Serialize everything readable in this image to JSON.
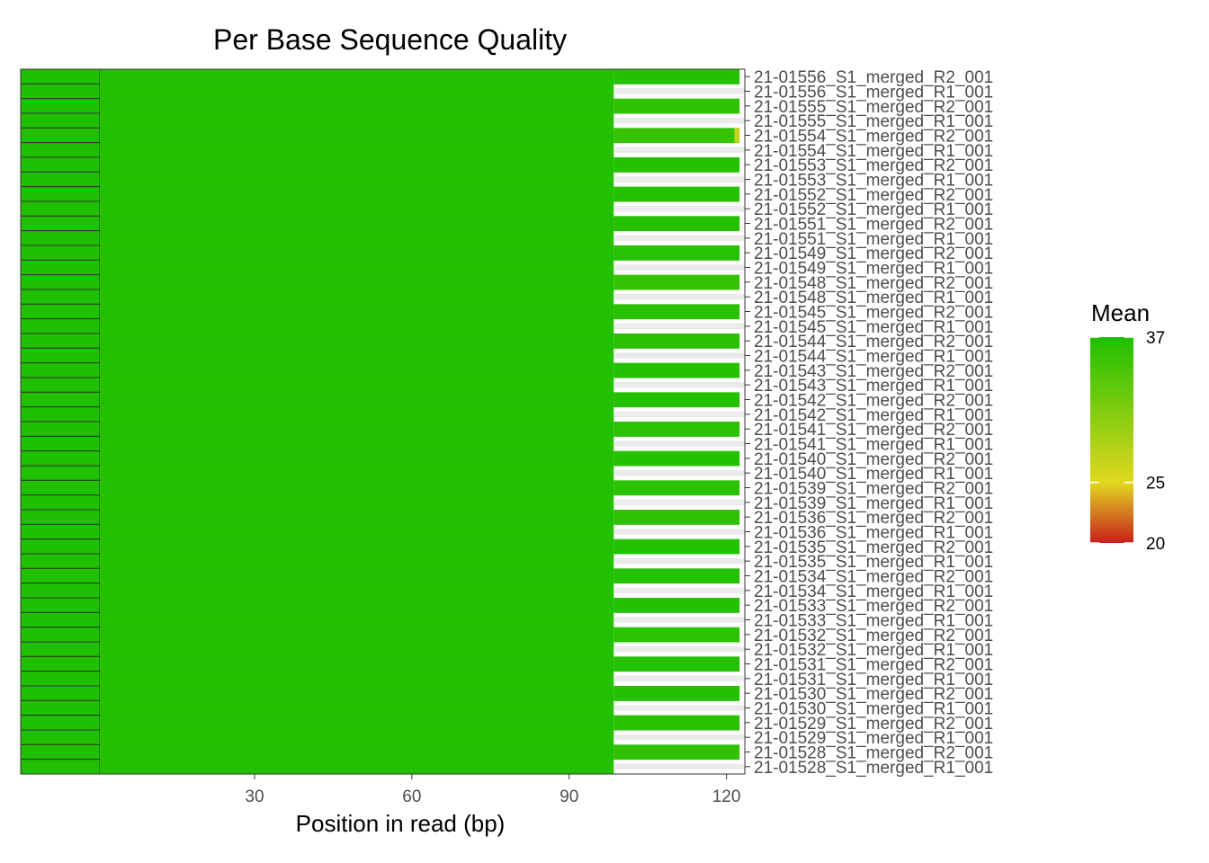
{
  "chart_data": {
    "type": "heatmap",
    "title": "Per Base Sequence Quality",
    "xlabel": "Position in read (bp)",
    "ylabel": "",
    "xlim": [
      0.5,
      123.5
    ],
    "x_ticks": [
      30,
      60,
      90,
      120
    ],
    "grid": false,
    "legend_position": "right",
    "legend": {
      "title": "Mean",
      "ticks": [
        37,
        25,
        20
      ],
      "range": [
        20,
        37
      ],
      "colors": {
        "low": "#c8201e",
        "mid": "#e1d81f",
        "high": "#1ec000"
      }
    },
    "sidebar_color": "#1ec000",
    "short_read_length": 98,
    "long_read_length": 122,
    "rows": [
      {
        "name": "21-01556_S1_merged_R2_001",
        "length": 122,
        "tail": 36.6,
        "extra_value": null
      },
      {
        "name": "21-01556_S1_merged_R1_001",
        "length": 98,
        "tail": null,
        "extra_value": null
      },
      {
        "name": "21-01555_S1_merged_R2_001",
        "length": 122,
        "tail": 35.9,
        "extra_value": null
      },
      {
        "name": "21-01555_S1_merged_R1_001",
        "length": 98,
        "tail": null,
        "extra_value": null
      },
      {
        "name": "21-01554_S1_merged_R2_001",
        "length": 122,
        "tail": 35.5,
        "extra_value": 27.0
      },
      {
        "name": "21-01554_S1_merged_R1_001",
        "length": 98,
        "tail": null,
        "extra_value": null
      },
      {
        "name": "21-01553_S1_merged_R2_001",
        "length": 122,
        "tail": 36.6,
        "extra_value": null
      },
      {
        "name": "21-01553_S1_merged_R1_001",
        "length": 98,
        "tail": null,
        "extra_value": null
      },
      {
        "name": "21-01552_S1_merged_R2_001",
        "length": 122,
        "tail": 36.6,
        "extra_value": null
      },
      {
        "name": "21-01552_S1_merged_R1_001",
        "length": 98,
        "tail": null,
        "extra_value": null
      },
      {
        "name": "21-01551_S1_merged_R2_001",
        "length": 122,
        "tail": 36.6,
        "extra_value": null
      },
      {
        "name": "21-01551_S1_merged_R1_001",
        "length": 98,
        "tail": null,
        "extra_value": null
      },
      {
        "name": "21-01549_S1_merged_R2_001",
        "length": 122,
        "tail": 36.5,
        "extra_value": null
      },
      {
        "name": "21-01549_S1_merged_R1_001",
        "length": 98,
        "tail": null,
        "extra_value": null
      },
      {
        "name": "21-01548_S1_merged_R2_001",
        "length": 122,
        "tail": 35.6,
        "extra_value": null
      },
      {
        "name": "21-01548_S1_merged_R1_001",
        "length": 98,
        "tail": null,
        "extra_value": null
      },
      {
        "name": "21-01545_S1_merged_R2_001",
        "length": 122,
        "tail": 36.3,
        "extra_value": null
      },
      {
        "name": "21-01545_S1_merged_R1_001",
        "length": 98,
        "tail": null,
        "extra_value": null
      },
      {
        "name": "21-01544_S1_merged_R2_001",
        "length": 122,
        "tail": 36.3,
        "extra_value": null
      },
      {
        "name": "21-01544_S1_merged_R1_001",
        "length": 98,
        "tail": null,
        "extra_value": null
      },
      {
        "name": "21-01543_S1_merged_R2_001",
        "length": 122,
        "tail": 36.6,
        "extra_value": null
      },
      {
        "name": "21-01543_S1_merged_R1_001",
        "length": 98,
        "tail": null,
        "extra_value": null
      },
      {
        "name": "21-01542_S1_merged_R2_001",
        "length": 122,
        "tail": 36.6,
        "extra_value": null
      },
      {
        "name": "21-01542_S1_merged_R1_001",
        "length": 98,
        "tail": null,
        "extra_value": null
      },
      {
        "name": "21-01541_S1_merged_R2_001",
        "length": 122,
        "tail": 36.2,
        "extra_value": null
      },
      {
        "name": "21-01541_S1_merged_R1_001",
        "length": 98,
        "tail": null,
        "extra_value": null
      },
      {
        "name": "21-01540_S1_merged_R2_001",
        "length": 122,
        "tail": 36.6,
        "extra_value": null
      },
      {
        "name": "21-01540_S1_merged_R1_001",
        "length": 98,
        "tail": null,
        "extra_value": null
      },
      {
        "name": "21-01539_S1_merged_R2_001",
        "length": 122,
        "tail": 36.2,
        "extra_value": null
      },
      {
        "name": "21-01539_S1_merged_R1_001",
        "length": 98,
        "tail": null,
        "extra_value": null
      },
      {
        "name": "21-01536_S1_merged_R2_001",
        "length": 122,
        "tail": 36.0,
        "extra_value": null
      },
      {
        "name": "21-01536_S1_merged_R1_001",
        "length": 98,
        "tail": null,
        "extra_value": null
      },
      {
        "name": "21-01535_S1_merged_R2_001",
        "length": 122,
        "tail": 36.6,
        "extra_value": null
      },
      {
        "name": "21-01535_S1_merged_R1_001",
        "length": 98,
        "tail": null,
        "extra_value": null
      },
      {
        "name": "21-01534_S1_merged_R2_001",
        "length": 122,
        "tail": 36.6,
        "extra_value": null
      },
      {
        "name": "21-01534_S1_merged_R1_001",
        "length": 98,
        "tail": null,
        "extra_value": null
      },
      {
        "name": "21-01533_S1_merged_R2_001",
        "length": 122,
        "tail": 36.6,
        "extra_value": null
      },
      {
        "name": "21-01533_S1_merged_R1_001",
        "length": 98,
        "tail": null,
        "extra_value": null
      },
      {
        "name": "21-01532_S1_merged_R2_001",
        "length": 122,
        "tail": 36.2,
        "extra_value": null
      },
      {
        "name": "21-01532_S1_merged_R1_001",
        "length": 98,
        "tail": null,
        "extra_value": null
      },
      {
        "name": "21-01531_S1_merged_R2_001",
        "length": 122,
        "tail": 36.6,
        "extra_value": null
      },
      {
        "name": "21-01531_S1_merged_R1_001",
        "length": 98,
        "tail": null,
        "extra_value": null
      },
      {
        "name": "21-01530_S1_merged_R2_001",
        "length": 122,
        "tail": 36.6,
        "extra_value": null
      },
      {
        "name": "21-01530_S1_merged_R1_001",
        "length": 98,
        "tail": null,
        "extra_value": null
      },
      {
        "name": "21-01529_S1_merged_R2_001",
        "length": 122,
        "tail": 36.3,
        "extra_value": null
      },
      {
        "name": "21-01529_S1_merged_R1_001",
        "length": 98,
        "tail": null,
        "extra_value": null
      },
      {
        "name": "21-01528_S1_merged_R2_001",
        "length": 122,
        "tail": 35.9,
        "extra_value": null
      },
      {
        "name": "21-01528_S1_merged_R1_001",
        "length": 98,
        "tail": null,
        "extra_value": null
      }
    ]
  }
}
